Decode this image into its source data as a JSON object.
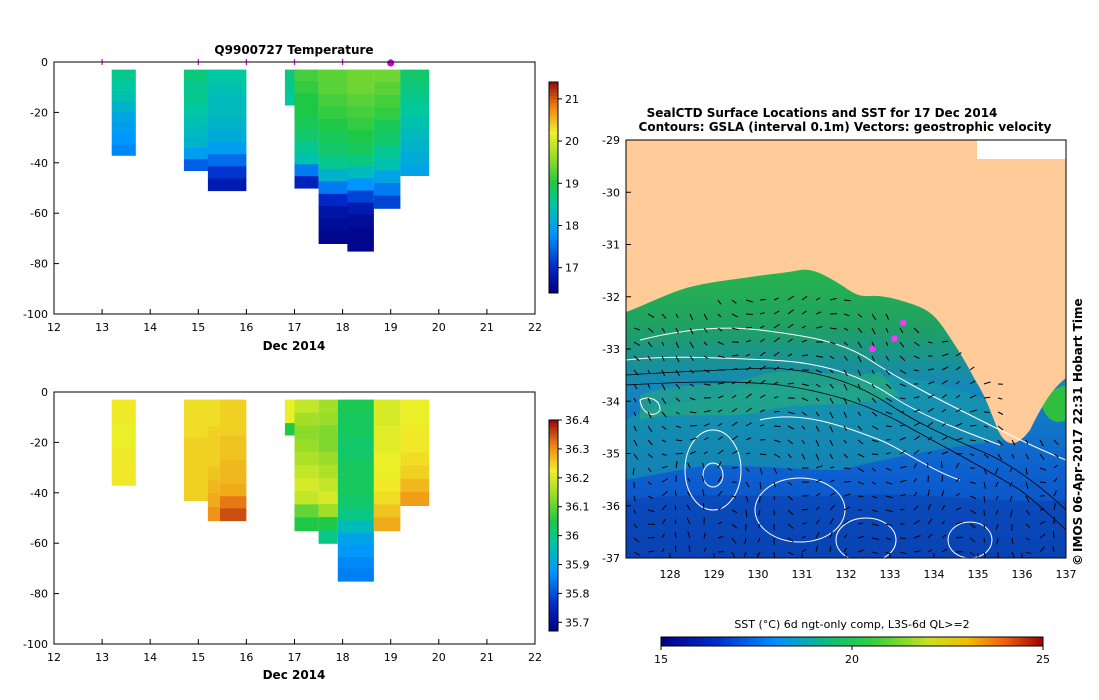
{
  "figure": {
    "copyright_mark": "©",
    "credit": "IMOS 06-Apr-2017 22:31 Hobart Time"
  },
  "chart_data": [
    {
      "type": "heatmap",
      "title": "Q9900727  Temperature",
      "xlabel": "Dec 2014",
      "ylabel": "",
      "xlim": [
        12,
        22
      ],
      "ylim": [
        -100,
        0
      ],
      "x_ticks": [
        "12",
        "13",
        "14",
        "15",
        "16",
        "17",
        "18",
        "19",
        "20",
        "21",
        "22"
      ],
      "y_ticks": [
        "0",
        "-20",
        "-40",
        "-60",
        "-80",
        "-100"
      ],
      "colorbar": {
        "min": 16.4,
        "max": 21.4,
        "ticks": [
          "17",
          "18",
          "19",
          "20",
          "21"
        ]
      },
      "profile_markers_x": [
        13.0,
        15.0,
        16.0,
        17.0,
        18.0,
        19.0
      ],
      "highlight_marker_x": 19.0,
      "profiles": [
        {
          "x0": 13.2,
          "x1": 13.7,
          "dmax": 37,
          "values": [
            18.6,
            18.5,
            18.4,
            18.2,
            18.0,
            17.9,
            17.8,
            17.7
          ]
        },
        {
          "x0": 14.7,
          "x1": 15.2,
          "dmax": 43,
          "values": [
            18.7,
            18.6,
            18.6,
            18.5,
            18.4,
            18.3,
            18.2,
            17.9,
            17.4
          ]
        },
        {
          "x0": 15.2,
          "x1": 16.0,
          "dmax": 51,
          "values": [
            18.5,
            18.4,
            18.3,
            18.3,
            18.2,
            18.1,
            17.9,
            17.5,
            17.1,
            16.8
          ]
        },
        {
          "x0": 16.8,
          "x1": 17.15,
          "dmax": 17,
          "values": [
            18.7,
            18.6,
            18.5
          ]
        },
        {
          "x0": 17.0,
          "x1": 17.5,
          "dmax": 50,
          "values": [
            19.2,
            19.1,
            19.0,
            19.0,
            18.9,
            18.8,
            18.6,
            18.4,
            17.6,
            16.9
          ]
        },
        {
          "x0": 17.5,
          "x1": 18.1,
          "dmax": 72,
          "values": [
            19.3,
            19.3,
            19.2,
            19.1,
            19.0,
            18.9,
            18.8,
            18.6,
            18.2,
            17.6,
            17.0,
            16.7,
            16.6,
            16.5
          ]
        },
        {
          "x0": 18.1,
          "x1": 18.65,
          "dmax": 75,
          "values": [
            19.4,
            19.4,
            19.3,
            19.2,
            19.1,
            19.0,
            18.9,
            18.7,
            18.3,
            17.8,
            17.2,
            16.8,
            16.6,
            16.5,
            16.5
          ]
        },
        {
          "x0": 18.65,
          "x1": 19.2,
          "dmax": 58,
          "values": [
            19.4,
            19.3,
            19.2,
            19.1,
            18.9,
            18.8,
            18.6,
            18.4,
            18.0,
            17.6,
            17.2
          ]
        },
        {
          "x0": 19.2,
          "x1": 19.8,
          "dmax": 45,
          "values": [
            18.8,
            18.7,
            18.6,
            18.5,
            18.4,
            18.3,
            18.2,
            18.1,
            18.0
          ]
        }
      ]
    },
    {
      "type": "heatmap",
      "title": "",
      "xlabel": "Dec 2014",
      "ylabel": "",
      "xlim": [
        12,
        22
      ],
      "ylim": [
        -100,
        0
      ],
      "x_ticks": [
        "12",
        "13",
        "14",
        "15",
        "16",
        "17",
        "18",
        "19",
        "20",
        "21",
        "22"
      ],
      "y_ticks": [
        "0",
        "-20",
        "-40",
        "-60",
        "-80",
        "-100"
      ],
      "colorbar": {
        "min": 35.67,
        "max": 36.4,
        "ticks": [
          "35.7",
          "35.8",
          "35.9",
          "36",
          "36.1",
          "36.2",
          "36.3",
          "36.4"
        ]
      },
      "profiles": [
        {
          "x0": 13.2,
          "x1": 13.7,
          "dmax": 37,
          "values": [
            36.23,
            36.23,
            36.22,
            36.22,
            36.23,
            36.23,
            36.23
          ]
        },
        {
          "x0": 14.7,
          "x1": 15.2,
          "dmax": 43,
          "values": [
            36.24,
            36.24,
            36.24,
            36.25,
            36.25,
            36.25,
            36.25,
            36.25
          ]
        },
        {
          "x0": 15.2,
          "x1": 15.45,
          "dmax": 51,
          "values": [
            36.24,
            36.24,
            36.25,
            36.25,
            36.25,
            36.26,
            36.27,
            36.28,
            36.3
          ]
        },
        {
          "x0": 15.45,
          "x1": 16.0,
          "dmax": 51,
          "values": [
            36.25,
            36.25,
            36.25,
            36.26,
            36.26,
            36.27,
            36.27,
            36.28,
            36.32,
            36.35
          ]
        },
        {
          "x0": 16.8,
          "x1": 17.15,
          "dmax": 17,
          "values": [
            36.22,
            36.22,
            36.05
          ]
        },
        {
          "x0": 17.0,
          "x1": 17.5,
          "dmax": 55,
          "values": [
            36.18,
            36.15,
            36.13,
            36.14,
            36.16,
            36.18,
            36.2,
            36.18,
            36.1,
            36.05
          ]
        },
        {
          "x0": 17.5,
          "x1": 17.9,
          "dmax": 60,
          "values": [
            36.15,
            36.14,
            36.12,
            36.12,
            36.14,
            36.16,
            36.18,
            36.2,
            36.15,
            36.05,
            36.0
          ]
        },
        {
          "x0": 17.9,
          "x1": 18.65,
          "dmax": 75,
          "values": [
            36.04,
            36.03,
            36.03,
            36.02,
            36.02,
            36.03,
            36.03,
            36.03,
            36.02,
            36.0,
            35.95,
            35.9,
            35.88,
            35.86,
            35.85
          ]
        },
        {
          "x0": 18.65,
          "x1": 19.2,
          "dmax": 55,
          "values": [
            36.2,
            36.2,
            36.21,
            36.21,
            36.22,
            36.22,
            36.23,
            36.24,
            36.26,
            36.28
          ]
        },
        {
          "x0": 19.2,
          "x1": 19.8,
          "dmax": 45,
          "values": [
            36.22,
            36.22,
            36.23,
            36.23,
            36.24,
            36.25,
            36.27,
            36.29
          ]
        }
      ]
    },
    {
      "type": "heatmap",
      "title": "SealCTD Surface Locations and SST for 17 Dec 2014",
      "subtitle": "Contours: GSLA (interval 0.1m) Vectors: geostrophic velocity",
      "xlim": [
        127,
        137
      ],
      "ylim": [
        -37,
        -29
      ],
      "x_ticks": [
        "128",
        "129",
        "130",
        "131",
        "132",
        "133",
        "134",
        "135",
        "136",
        "137"
      ],
      "y_ticks": [
        "-29",
        "-30",
        "-31",
        "-32",
        "-33",
        "-34",
        "-35",
        "-36",
        "-37"
      ],
      "colorbar": {
        "label": "SST (°C) 6d ngt-only comp, L3S-6d QL>=2",
        "min": 15,
        "max": 25,
        "ticks": [
          "15",
          "20",
          "25"
        ]
      },
      "seal_locations": [
        {
          "lon": 133.3,
          "lat": -32.5
        },
        {
          "lon": 133.1,
          "lat": -32.8
        },
        {
          "lon": 132.6,
          "lat": -33.0
        }
      ],
      "land_color": "#ffcc99"
    }
  ]
}
